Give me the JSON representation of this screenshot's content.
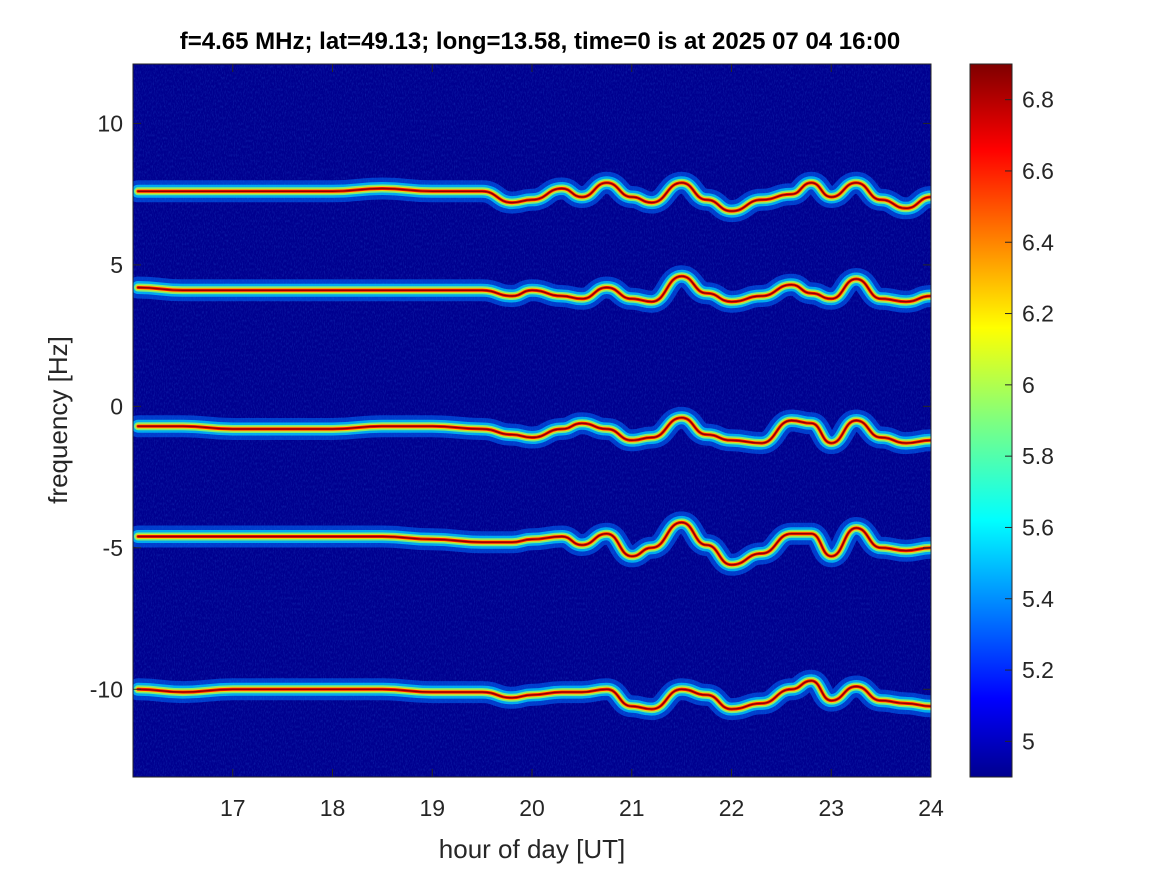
{
  "chart_data": {
    "type": "heatmap",
    "title": "f=4.65 MHz;  lat=49.13; long=13.58, time=0 is at 2025 07 04 16:00",
    "xlabel": "hour of day [UT]",
    "ylabel": "frequency [Hz]",
    "xlim": [
      16,
      24
    ],
    "ylim": [
      -13.1,
      12.1
    ],
    "xticks": [
      17,
      18,
      19,
      20,
      21,
      22,
      23,
      24
    ],
    "yticks": [
      -10,
      -5,
      0,
      5,
      10
    ],
    "colorbar": {
      "clim": [
        4.9,
        6.9
      ],
      "ticks": [
        5,
        5.2,
        5.4,
        5.6,
        5.8,
        6,
        6.2,
        6.4,
        6.6,
        6.8
      ],
      "colormap": "jet"
    },
    "background_color": "#00008f",
    "series": [
      {
        "x": [
          16.05,
          16.5,
          17,
          17.5,
          18,
          18.5,
          19,
          19.5,
          19.8,
          20,
          20.3,
          20.5,
          20.75,
          21,
          21.2,
          21.5,
          21.75,
          22,
          22.3,
          22.6,
          22.8,
          23,
          23.25,
          23.5,
          23.75,
          24
        ],
        "y": [
          7.6,
          7.6,
          7.6,
          7.6,
          7.6,
          7.7,
          7.6,
          7.6,
          7.2,
          7.3,
          7.7,
          7.4,
          7.9,
          7.4,
          7.2,
          7.9,
          7.3,
          6.9,
          7.3,
          7.5,
          7.9,
          7.4,
          7.9,
          7.3,
          7.0,
          7.4
        ]
      },
      {
        "x": [
          16.05,
          16.5,
          17,
          17.5,
          18,
          18.5,
          19,
          19.5,
          19.8,
          20,
          20.3,
          20.5,
          20.75,
          21,
          21.2,
          21.5,
          21.75,
          22,
          22.3,
          22.6,
          22.8,
          23,
          23.25,
          23.5,
          23.75,
          24
        ],
        "y": [
          4.2,
          4.1,
          4.1,
          4.1,
          4.1,
          4.1,
          4.1,
          4.1,
          3.9,
          4.1,
          3.9,
          3.8,
          4.2,
          3.8,
          3.7,
          4.6,
          4.0,
          3.7,
          3.9,
          4.3,
          4.0,
          3.8,
          4.5,
          3.8,
          3.7,
          3.9
        ]
      },
      {
        "x": [
          16.05,
          16.5,
          17,
          17.5,
          18,
          18.5,
          19,
          19.5,
          19.8,
          20,
          20.3,
          20.5,
          20.75,
          21,
          21.2,
          21.5,
          21.75,
          22,
          22.3,
          22.6,
          22.8,
          23,
          23.25,
          23.5,
          23.75,
          24
        ],
        "y": [
          -0.7,
          -0.7,
          -0.8,
          -0.8,
          -0.8,
          -0.7,
          -0.7,
          -0.8,
          -1.0,
          -1.1,
          -0.8,
          -0.6,
          -0.8,
          -1.2,
          -1.1,
          -0.4,
          -1.0,
          -1.2,
          -1.3,
          -0.5,
          -0.6,
          -1.3,
          -0.5,
          -1.1,
          -1.3,
          -1.2
        ]
      },
      {
        "x": [
          16.05,
          16.5,
          17,
          17.5,
          18,
          18.5,
          19,
          19.5,
          19.8,
          20,
          20.3,
          20.5,
          20.75,
          21,
          21.2,
          21.5,
          21.75,
          22,
          22.3,
          22.6,
          22.8,
          23,
          23.25,
          23.5,
          23.75,
          24
        ],
        "y": [
          -4.6,
          -4.6,
          -4.6,
          -4.6,
          -4.6,
          -4.6,
          -4.7,
          -4.8,
          -4.8,
          -4.7,
          -4.6,
          -4.9,
          -4.5,
          -5.3,
          -5.0,
          -4.1,
          -4.9,
          -5.6,
          -5.2,
          -4.5,
          -4.5,
          -5.3,
          -4.3,
          -5.0,
          -5.1,
          -5.0
        ]
      },
      {
        "x": [
          16.05,
          16.5,
          17,
          17.5,
          18,
          18.5,
          19,
          19.5,
          19.8,
          20,
          20.3,
          20.5,
          20.75,
          21,
          21.2,
          21.5,
          21.75,
          22,
          22.3,
          22.6,
          22.8,
          23,
          23.25,
          23.5,
          23.75,
          24
        ],
        "y": [
          -10.0,
          -10.1,
          -10.0,
          -10.0,
          -10.0,
          -10.0,
          -10.1,
          -10.1,
          -10.3,
          -10.2,
          -10.1,
          -10.1,
          -10.0,
          -10.6,
          -10.7,
          -10.0,
          -10.2,
          -10.7,
          -10.5,
          -10.0,
          -9.7,
          -10.4,
          -9.9,
          -10.4,
          -10.5,
          -10.6
        ]
      }
    ]
  }
}
